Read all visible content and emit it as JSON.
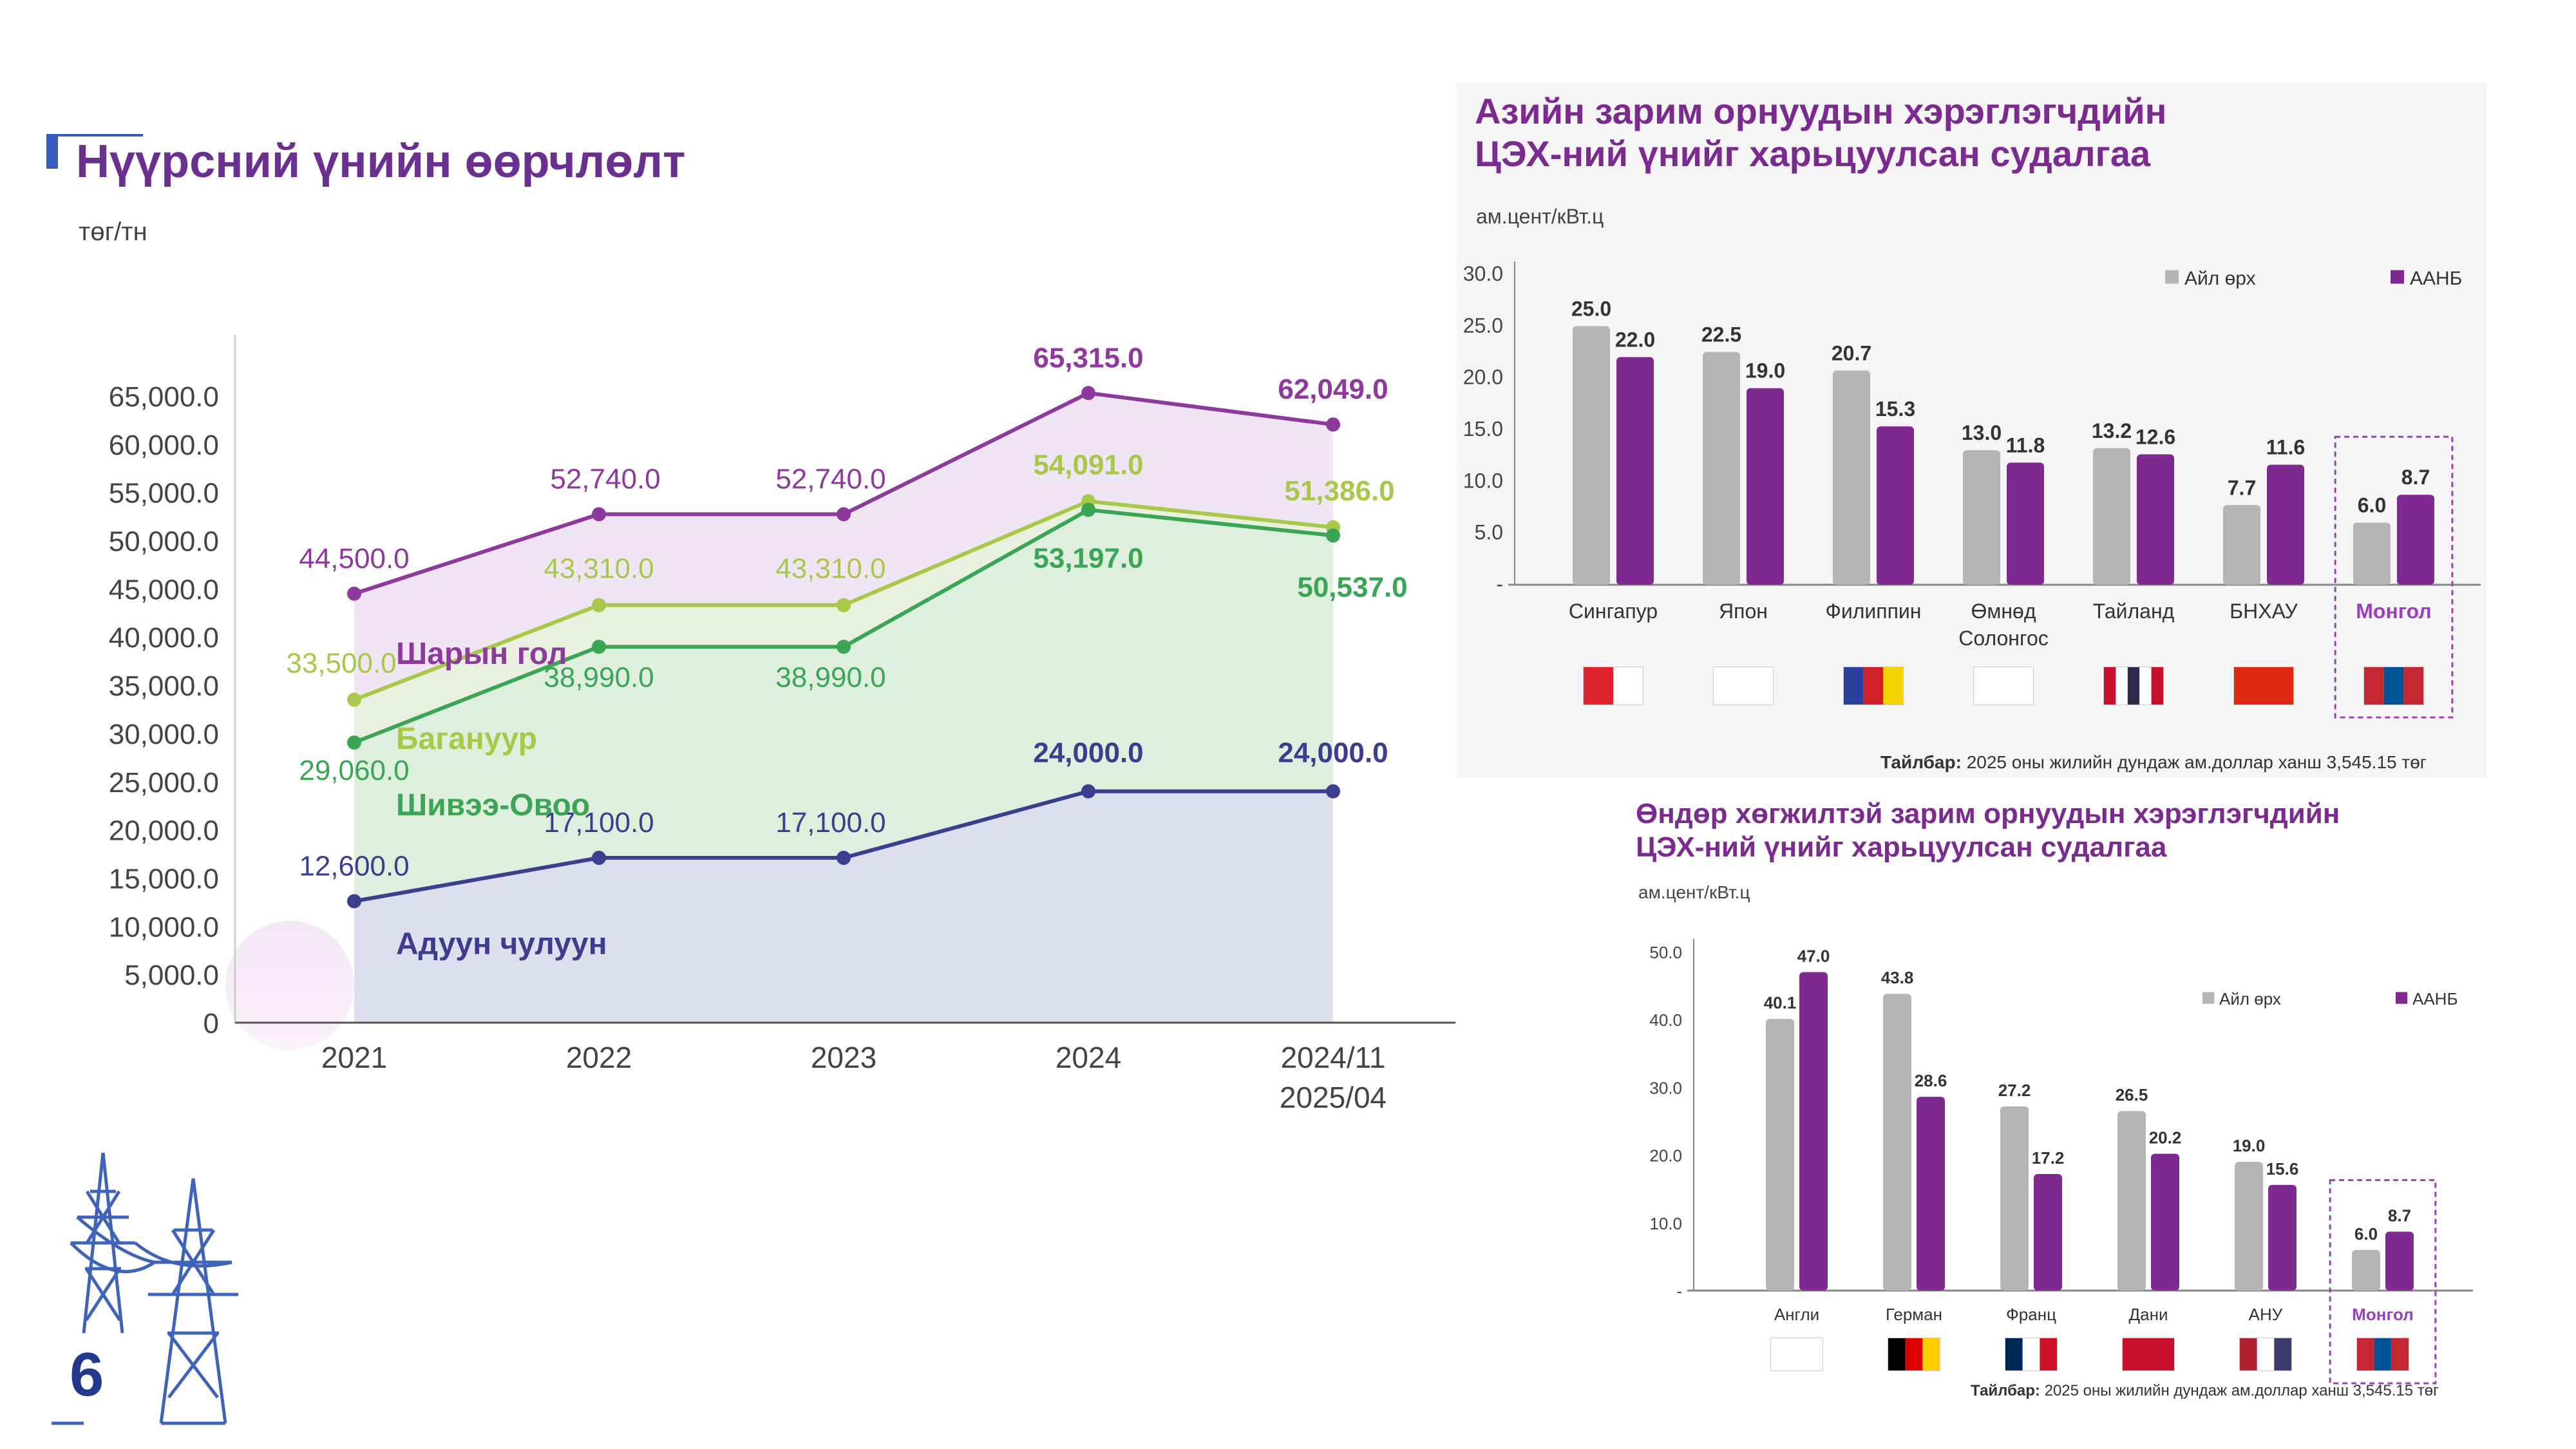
{
  "slide": {
    "page_number": "6",
    "coal_title": "Нүүрсний үнийн өөрчлөлт",
    "coal_unit": "төг/тн",
    "asia_title_line1": "Азийн зарим орнуудын хэрэглэгчдийн",
    "asia_title_line2": "ЦЭХ-ний үнийг харьцуулсан судалгаа",
    "asia_unit": "ам.цент/кВт.ц",
    "asia_note_label": "Тайлбар:",
    "asia_note_text": "2025 оны жилийн дундаж ам.доллар ханш 3,545.15 төг",
    "dev_title_line1": "Өндөр хөгжилтэй зарим орнуудын хэрэглэгчдийн",
    "dev_title_line2": "ЦЭХ-ний үнийг харьцуулсан судалгаа",
    "dev_unit": "ам.цент/кВт.ц",
    "dev_note_label": "Тайлбар:",
    "dev_note_text": "2025 оны жилийн дундаж ам.доллар ханш 3,545.15 төг",
    "highlight_color": "#9b3fbf"
  },
  "chart_data": [
    {
      "type": "line",
      "categories": [
        "2021",
        "2022",
        "2023",
        "2024",
        "2024/11\n2025/04"
      ],
      "ylim": [
        0,
        65000
      ],
      "yticks": [
        "0",
        "5,000.0",
        "10,000.0",
        "15,000.0",
        "20,000.0",
        "25,000.0",
        "30,000.0",
        "35,000.0",
        "40,000.0",
        "45,000.0",
        "50,000.0",
        "55,000.0",
        "60,000.0",
        "65,000.0"
      ],
      "series": [
        {
          "name": "Шарын гол",
          "values": [
            44500,
            52740,
            52740,
            65315,
            62049
          ],
          "labels": [
            "44,500.0",
            "52,740.0",
            "52,740.0",
            "65,315.0",
            "62,049.0"
          ],
          "color": "#8e3a9d"
        },
        {
          "name": "Багануур",
          "values": [
            33500,
            43310,
            43310,
            54091,
            51386
          ],
          "labels": [
            "33,500.0",
            "43,310.0",
            "43,310.0",
            "54,091.0",
            "51,386.0"
          ],
          "color": "#a8c84a"
        },
        {
          "name": "Шивээ-Овоо",
          "values": [
            29060,
            38990,
            38990,
            53197,
            50537
          ],
          "labels": [
            "29,060.0",
            "38,990.0",
            "38,990.0",
            "53,197.0",
            "50,537.0"
          ],
          "color": "#3aa655"
        },
        {
          "name": "Адуун чулуун",
          "values": [
            12600,
            17100,
            17100,
            24000,
            24000
          ],
          "labels": [
            "12,600.0",
            "17,100.0",
            "17,100.0",
            "24,000.0",
            "24,000.0"
          ],
          "color": "#3b3d8f"
        }
      ]
    },
    {
      "type": "bar",
      "categories": [
        "Сингапур",
        "Япон",
        "Филиппин",
        "Өмнөд\nСолонгос",
        "Тайланд",
        "БНХАУ",
        "Монгол"
      ],
      "ylim": [
        0,
        30
      ],
      "yticks": [
        "-",
        "5.0",
        "10.0",
        "15.0",
        "20.0",
        "25.0",
        "30.0"
      ],
      "series": [
        {
          "name": "Айл өрх",
          "values": [
            25.0,
            22.5,
            20.7,
            13.0,
            13.2,
            7.7,
            6.0
          ],
          "labels": [
            "25.0",
            "22.5",
            "20.7",
            "13.0",
            "13.2",
            "7.7",
            "6.0"
          ],
          "color": "#b5b5b5"
        },
        {
          "name": "ААНБ",
          "values": [
            22.0,
            19.0,
            15.3,
            11.8,
            12.6,
            11.6,
            8.7
          ],
          "labels": [
            "22.0",
            "19.0",
            "15.3",
            "11.8",
            "12.6",
            "11.6",
            "8.7"
          ],
          "color": "#7f2a91"
        }
      ],
      "highlight_category": "Монгол"
    },
    {
      "type": "bar",
      "categories": [
        "Англи",
        "Герман",
        "Франц",
        "Дани",
        "АНУ",
        "Монгол"
      ],
      "ylim": [
        0,
        50
      ],
      "yticks": [
        "-",
        "10.0",
        "20.0",
        "30.0",
        "40.0",
        "50.0"
      ],
      "series": [
        {
          "name": "Айл өрх",
          "values": [
            40.1,
            43.8,
            27.2,
            26.5,
            19.0,
            6.0
          ],
          "labels": [
            "40.1",
            "43.8",
            "27.2",
            "26.5",
            "19.0",
            "6.0"
          ],
          "color": "#b5b5b5"
        },
        {
          "name": "ААНБ",
          "values": [
            47.0,
            28.6,
            17.2,
            20.2,
            15.6,
            8.7
          ],
          "labels": [
            "47.0",
            "28.6",
            "17.2",
            "20.2",
            "15.6",
            "8.7"
          ],
          "color": "#7f2a91"
        }
      ],
      "highlight_category": "Монгол"
    }
  ]
}
